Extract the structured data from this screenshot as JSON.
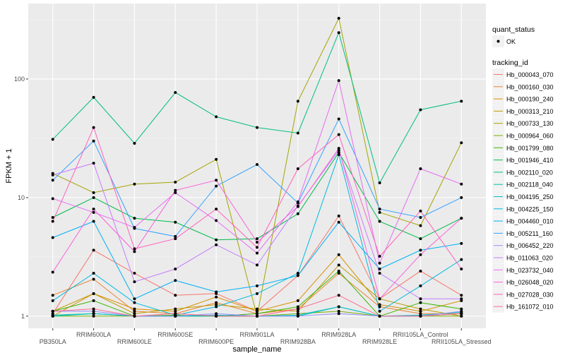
{
  "chart_data": {
    "type": "line",
    "title": "",
    "xlabel": "sample_name",
    "ylabel": "FPKM + 1",
    "y_scale": "log10",
    "ylim": [
      0.79,
      433
    ],
    "y_ticks": [
      1,
      10,
      100
    ],
    "y_tick_labels": [
      "1",
      "10",
      "100"
    ],
    "grid": true,
    "background": "#EBEBEB",
    "categories": [
      "PB350LA",
      "RRIM600LA",
      "RRIM600LE",
      "RRIM600SE",
      "RRIM600PE",
      "RRIM901LA",
      "RRIM928BA",
      "RRIM928LA",
      "RRIM928LE",
      "RRII105LA_Control",
      "RRII105LA_Stressed"
    ],
    "legend_position": "right",
    "point_legend": {
      "title": "quant_status",
      "entries": [
        "OK"
      ],
      "color": "#000000"
    },
    "line_legend_title": "tracking_id",
    "series": [
      {
        "name": "Hb_000043_070",
        "color": "#F8766D",
        "values": [
          1.05,
          3.6,
          2.3,
          1.5,
          1.55,
          1.1,
          2.2,
          7.0,
          1.4,
          2.4,
          1.5
        ]
      },
      {
        "name": "Hb_000160_030",
        "color": "#EA8331",
        "values": [
          1.5,
          2.05,
          1.1,
          1.05,
          1.3,
          1.05,
          1.15,
          2.3,
          1.2,
          1.05,
          1.05
        ]
      },
      {
        "name": "Hb_000190_240",
        "color": "#D89000",
        "values": [
          1.0,
          1.55,
          1.15,
          1.1,
          1.45,
          1.1,
          1.35,
          3.3,
          1.25,
          1.1,
          1.35
        ]
      },
      {
        "name": "Hb_000313_210",
        "color": "#C09B00",
        "values": [
          1.1,
          1.55,
          1.05,
          1.15,
          1.25,
          1.15,
          1.1,
          2.7,
          1.4,
          1.15,
          1.0
        ]
      },
      {
        "name": "Hb_000733_130",
        "color": "#A3A500",
        "values": [
          16,
          11,
          13,
          13.5,
          21,
          1.0,
          65,
          325,
          7.5,
          5.8,
          29
        ]
      },
      {
        "name": "Hb_000964_060",
        "color": "#7CAE00",
        "values": [
          1.0,
          1.0,
          1.0,
          1.0,
          1.0,
          1.0,
          1.05,
          1.1,
          1.0,
          1.0,
          1.0
        ]
      },
      {
        "name": "Hb_001799_080",
        "color": "#39B600",
        "values": [
          1.1,
          1.35,
          1.0,
          1.02,
          1.0,
          1.05,
          1.2,
          2.4,
          1.0,
          1.3,
          1.15
        ]
      },
      {
        "name": "Hb_001946_410",
        "color": "#00BB4E",
        "values": [
          6.8,
          10,
          6.7,
          6.2,
          4.4,
          4.5,
          7.3,
          24,
          6.3,
          4.5,
          6.7
        ]
      },
      {
        "name": "Hb_002110_020",
        "color": "#00BF7D",
        "values": [
          31,
          70,
          28.7,
          77,
          48,
          39,
          35,
          246,
          13.3,
          55,
          65
        ]
      },
      {
        "name": "Hb_002118_040",
        "color": "#00C1A3",
        "values": [
          1.0,
          1.05,
          1.0,
          1.0,
          1.0,
          1.0,
          1.0,
          1.2,
          1.0,
          1.0,
          1.05
        ]
      },
      {
        "name": "Hb_004195_250",
        "color": "#00BFC4",
        "values": [
          1.02,
          1.05,
          1.0,
          1.0,
          1.02,
          1.0,
          1.02,
          1.2,
          1.0,
          1.02,
          1.08
        ]
      },
      {
        "name": "Hb_004225_150",
        "color": "#00BAE0",
        "values": [
          1.35,
          2.3,
          1.3,
          1.02,
          1.2,
          1.55,
          2.3,
          23,
          1.1,
          1.8,
          3.0
        ]
      },
      {
        "name": "Hb_004460_010",
        "color": "#00B0F6",
        "values": [
          4.6,
          6.3,
          1.4,
          2.0,
          1.6,
          1.8,
          2.2,
          6.2,
          2.5,
          3.6,
          4.1
        ]
      },
      {
        "name": "Hb_005211_160",
        "color": "#35A2FF",
        "values": [
          14,
          30,
          5.5,
          4.7,
          12.5,
          19,
          9,
          46,
          8,
          6.8,
          10
        ]
      },
      {
        "name": "Hb_006452_220",
        "color": "#9590FF",
        "values": [
          1.1,
          1.1,
          1.0,
          1.0,
          1.05,
          1.0,
          1.0,
          1.05,
          1.0,
          1.0,
          1.1
        ]
      },
      {
        "name": "Hb_011063_020",
        "color": "#C77CFF",
        "values": [
          15.5,
          19.5,
          1.95,
          2.5,
          4.0,
          2.7,
          8.5,
          25,
          2.3,
          1.4,
          1.4
        ]
      },
      {
        "name": "Hb_023732_040",
        "color": "#E76BF3",
        "values": [
          9.8,
          7.5,
          5.6,
          11,
          6.4,
          3.4,
          9.2,
          97,
          2.8,
          17.5,
          13
        ]
      },
      {
        "name": "Hb_026048_020",
        "color": "#FA62DB",
        "values": [
          2.35,
          8,
          3.5,
          11.5,
          14,
          4.2,
          8.4,
          26,
          1.4,
          3.3,
          6.7
        ]
      },
      {
        "name": "Hb_027028_030",
        "color": "#FF62BC",
        "values": [
          6.3,
          39,
          3.7,
          4.5,
          8,
          3.8,
          17.5,
          34,
          3.2,
          7.7,
          2.5
        ]
      },
      {
        "name": "Hb_161072_010",
        "color": "#FF6C91",
        "values": [
          1.1,
          1.15,
          1.0,
          1.05,
          1.0,
          1.0,
          1.15,
          1.5,
          1.0,
          1.0,
          1.05
        ]
      }
    ]
  }
}
